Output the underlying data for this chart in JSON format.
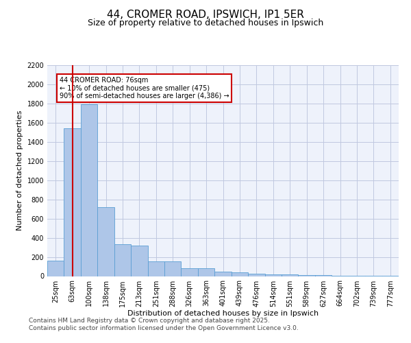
{
  "title_line1": "44, CROMER ROAD, IPSWICH, IP1 5ER",
  "title_line2": "Size of property relative to detached houses in Ipswich",
  "xlabel": "Distribution of detached houses by size in Ipswich",
  "ylabel": "Number of detached properties",
  "categories": [
    "25sqm",
    "63sqm",
    "100sqm",
    "138sqm",
    "175sqm",
    "213sqm",
    "251sqm",
    "288sqm",
    "326sqm",
    "363sqm",
    "401sqm",
    "439sqm",
    "476sqm",
    "514sqm",
    "551sqm",
    "589sqm",
    "627sqm",
    "664sqm",
    "702sqm",
    "739sqm",
    "777sqm"
  ],
  "values": [
    160,
    1540,
    1790,
    720,
    330,
    320,
    155,
    155,
    80,
    80,
    45,
    40,
    22,
    18,
    18,
    12,
    8,
    2,
    2,
    2,
    2
  ],
  "bar_color": "#aec6e8",
  "bar_edge_color": "#5a9fd4",
  "bg_color": "#eef2fb",
  "grid_color": "#c0c8e0",
  "annotation_text": "44 CROMER ROAD: 76sqm\n← 10% of detached houses are smaller (475)\n90% of semi-detached houses are larger (4,386) →",
  "annotation_box_color": "#cc0000",
  "vline_x": 1,
  "vline_color": "#cc0000",
  "ylim": [
    0,
    2200
  ],
  "yticks": [
    0,
    200,
    400,
    600,
    800,
    1000,
    1200,
    1400,
    1600,
    1800,
    2000,
    2200
  ],
  "footer_line1": "Contains HM Land Registry data © Crown copyright and database right 2025.",
  "footer_line2": "Contains public sector information licensed under the Open Government Licence v3.0.",
  "title_fontsize": 11,
  "subtitle_fontsize": 9,
  "label_fontsize": 8,
  "tick_fontsize": 7,
  "annotation_fontsize": 7,
  "footer_fontsize": 6.5
}
